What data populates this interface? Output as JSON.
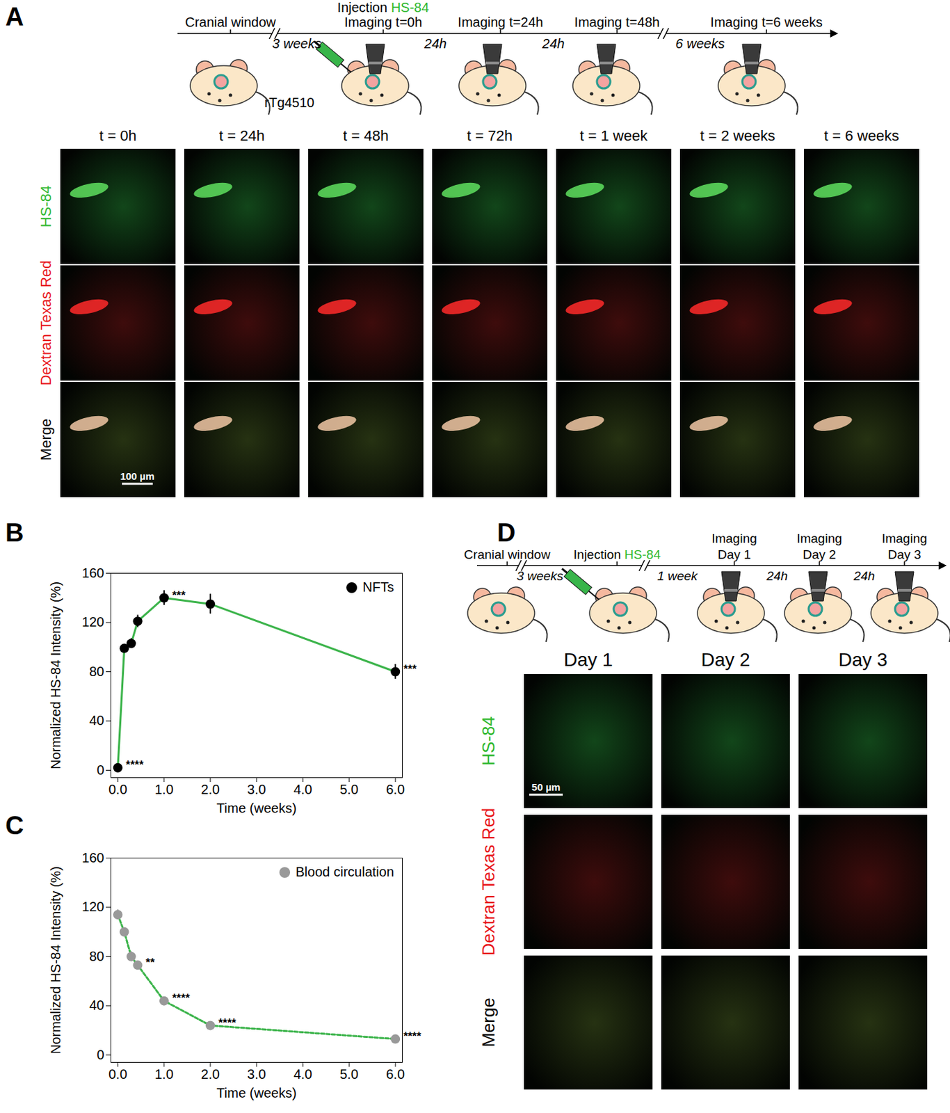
{
  "panel_labels": [
    "A",
    "B",
    "C",
    "D"
  ],
  "agent": "HS-84",
  "panel_A": {
    "timeline": {
      "events": [
        {
          "lines": [
            "Cranial window"
          ]
        },
        {
          "lines": [
            "Injection HS-84",
            "Imaging t=0h"
          ]
        },
        {
          "lines": [
            "Imaging t=24h"
          ]
        },
        {
          "lines": [
            "Imaging t=48h"
          ]
        },
        {
          "lines": [
            "Imaging t=6 weeks"
          ]
        }
      ],
      "intervals": [
        "3 weeks",
        "24h",
        "24h",
        "6 weeks"
      ],
      "strain": "rTg4510"
    },
    "columns": [
      "t = 0h",
      "t = 24h",
      "t = 48h",
      "t = 72h",
      "t = 1 week",
      "t = 2 weeks",
      "t = 6 weeks"
    ],
    "rows": [
      "HS-84",
      "Dextran Texas Red",
      "Merge"
    ],
    "scale_bar": "100 µm"
  },
  "panel_D": {
    "timeline": {
      "events": [
        {
          "lines": [
            "Cranial window"
          ]
        },
        {
          "lines": [
            "Injection HS-84"
          ]
        },
        {
          "lines": [
            "Imaging",
            "Day 1"
          ]
        },
        {
          "lines": [
            "Imaging",
            "Day 2"
          ]
        },
        {
          "lines": [
            "Imaging",
            "Day 3"
          ]
        }
      ],
      "intervals": [
        "3 weeks",
        "1 week",
        "24h",
        "24h"
      ]
    },
    "columns": [
      "Day 1",
      "Day 2",
      "Day 3"
    ],
    "rows": [
      "HS-84",
      "Dextran Texas Red",
      "Merge"
    ],
    "scale_bar": "50 µm"
  },
  "chart_data": [
    {
      "type": "line",
      "x_label": "Time (weeks)",
      "y_label": "Normalized HS-84 Intensity (%)",
      "x": [
        0,
        0.14,
        0.29,
        0.43,
        1,
        2,
        6
      ],
      "color": "#3cb44b",
      "series": [
        {
          "name": "NFTs",
          "color": "#000000",
          "marker": "circle",
          "line_style": "solid",
          "values": [
            2,
            99,
            103,
            121,
            140,
            135,
            80
          ],
          "errors": [
            0.5,
            2,
            4,
            5,
            6,
            8,
            6
          ]
        }
      ],
      "annotations": [
        {
          "x": 0,
          "y": 2,
          "text": "****"
        },
        {
          "x": 1,
          "y": 140,
          "text": "***"
        },
        {
          "x": 6,
          "y": 80,
          "text": "***"
        }
      ],
      "xlim": [
        -0.15,
        6.15
      ],
      "xticks": [
        0,
        1,
        2,
        3,
        4,
        5,
        6
      ],
      "ylim": [
        -6,
        160
      ],
      "yticks": [
        0,
        40,
        80,
        120,
        160
      ],
      "grid": false,
      "legend": "top-right"
    },
    {
      "type": "line",
      "x_label": "Time (weeks)",
      "y_label": "Normalized HS-84 Intensity (%)",
      "x": [
        0,
        0.14,
        0.29,
        0.43,
        1,
        2,
        6
      ],
      "color": "#3cb44b",
      "series": [
        {
          "name": "Blood circulation",
          "color": "#999999",
          "marker": "circle",
          "line_style": "dashed",
          "values": [
            114,
            100,
            80,
            73,
            44,
            24,
            13
          ],
          "errors": [
            4,
            2,
            4,
            3,
            2,
            1,
            1
          ]
        }
      ],
      "annotations": [
        {
          "x": 0.43,
          "y": 73,
          "text": "**"
        },
        {
          "x": 1,
          "y": 44,
          "text": "****"
        },
        {
          "x": 2,
          "y": 24,
          "text": "****"
        },
        {
          "x": 6,
          "y": 13,
          "text": "****"
        }
      ],
      "xlim": [
        -0.15,
        6.15
      ],
      "xticks": [
        0,
        1,
        2,
        3,
        4,
        5,
        6
      ],
      "ylim": [
        -6,
        160
      ],
      "yticks": [
        0,
        40,
        80,
        120,
        160
      ],
      "grid": false,
      "legend": "top-right"
    }
  ]
}
